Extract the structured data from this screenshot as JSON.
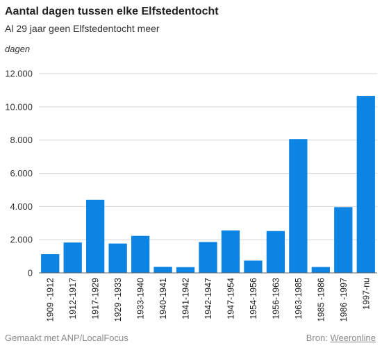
{
  "title": "Aantal dagen tussen elke Elfstedentocht",
  "subtitle": "Al 29 jaar geen Elfstedentocht meer",
  "unit_label": "dagen",
  "footer": {
    "made_with": "Gemaakt met ANP/LocalFocus",
    "source_prefix": "Bron:",
    "source_name": "Weeronline"
  },
  "colors": {
    "bar": "#0b84e3",
    "grid": "#d6d6d6",
    "axis": "#666666"
  },
  "chart_data": {
    "type": "bar",
    "title": "Aantal dagen tussen elke Elfstedentocht",
    "subtitle": "Al 29 jaar geen Elfstedentocht meer",
    "ylabel": "dagen",
    "xlabel": "",
    "ylim": [
      0,
      12000
    ],
    "yticks": [
      "0",
      "2.000",
      "4.000",
      "6.000",
      "8.000",
      "10.000",
      "12.000"
    ],
    "ytick_values": [
      0,
      2000,
      4000,
      6000,
      8000,
      10000,
      12000
    ],
    "grid": true,
    "categories": [
      "1909 -1912",
      "1912-1917",
      "1917-1929",
      "1929 -1933",
      "1933-1940",
      "1940-1941",
      "1941-1942",
      "1942-1947",
      "1947-1954",
      "1954-1956",
      "1956-1963",
      "1963-1985",
      "1985 -1986",
      "1986 -1997",
      "1997-nu"
    ],
    "values": [
      1130,
      1830,
      4400,
      1770,
      2230,
      370,
      350,
      1860,
      2560,
      740,
      2520,
      8060,
      360,
      3960,
      10660
    ]
  }
}
